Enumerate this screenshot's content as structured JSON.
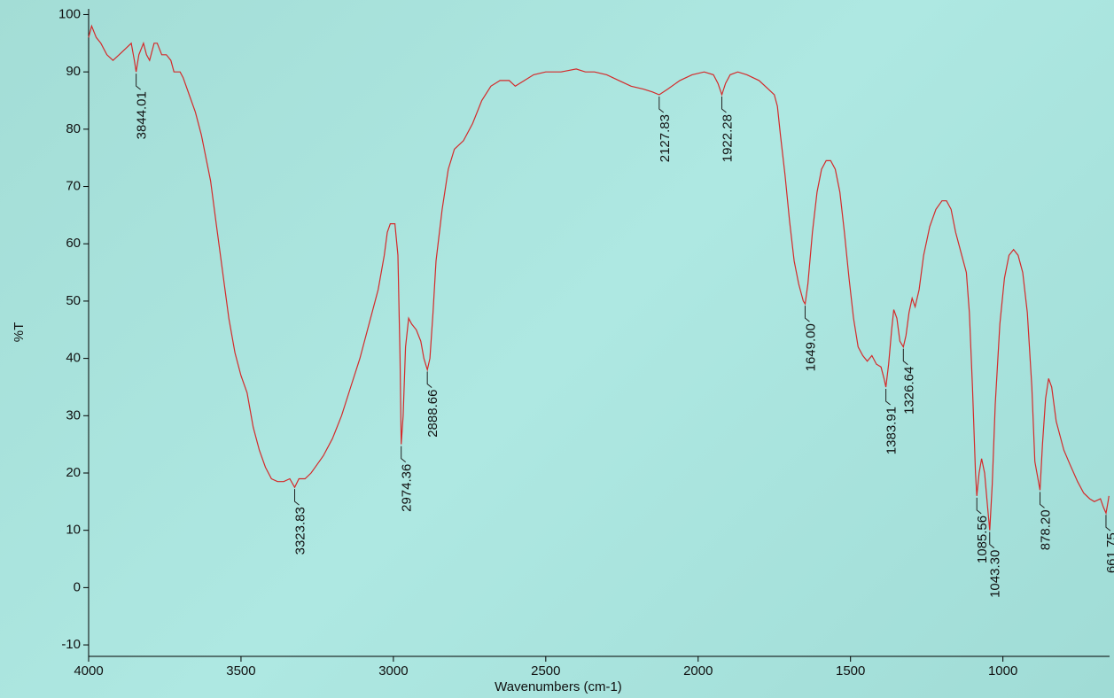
{
  "chart_data": {
    "type": "line",
    "x_label": "Wavenumbers (cm-1)",
    "y_label": "%T",
    "color": "#d42a2a",
    "xlim": [
      4000,
      650
    ],
    "ylim": [
      -12,
      101
    ],
    "xticks": [
      4000,
      3500,
      3000,
      2500,
      2000,
      1500,
      1000
    ],
    "yticks": [
      -10,
      0,
      10,
      20,
      30,
      40,
      50,
      60,
      70,
      80,
      90,
      100
    ],
    "x": [
      4000,
      3990,
      3975,
      3960,
      3940,
      3920,
      3900,
      3880,
      3860,
      3850,
      3844,
      3835,
      3820,
      3810,
      3800,
      3785,
      3775,
      3760,
      3745,
      3730,
      3720,
      3700,
      3690,
      3670,
      3650,
      3630,
      3600,
      3580,
      3560,
      3540,
      3520,
      3500,
      3480,
      3460,
      3440,
      3420,
      3400,
      3380,
      3360,
      3340,
      3323.83,
      3310,
      3290,
      3270,
      3250,
      3230,
      3200,
      3170,
      3140,
      3110,
      3080,
      3050,
      3030,
      3020,
      3010,
      2995,
      2985,
      2978,
      2974.36,
      2968,
      2960,
      2950,
      2940,
      2925,
      2910,
      2900,
      2888.66,
      2880,
      2870,
      2860,
      2840,
      2820,
      2800,
      2770,
      2740,
      2710,
      2680,
      2650,
      2620,
      2600,
      2570,
      2540,
      2500,
      2450,
      2400,
      2370,
      2340,
      2300,
      2260,
      2220,
      2180,
      2150,
      2127.83,
      2100,
      2060,
      2020,
      1980,
      1950,
      1935,
      1922.28,
      1910,
      1895,
      1870,
      1840,
      1800,
      1770,
      1750,
      1740,
      1730,
      1715,
      1700,
      1685,
      1670,
      1655,
      1649,
      1640,
      1625,
      1610,
      1595,
      1580,
      1565,
      1550,
      1535,
      1520,
      1505,
      1490,
      1475,
      1460,
      1445,
      1430,
      1415,
      1400,
      1390,
      1383.91,
      1375,
      1365,
      1358,
      1348,
      1338,
      1326.64,
      1318,
      1308,
      1298,
      1288,
      1275,
      1260,
      1240,
      1220,
      1200,
      1185,
      1170,
      1155,
      1135,
      1120,
      1110,
      1100,
      1090,
      1085.56,
      1078,
      1070,
      1060,
      1050,
      1043.3,
      1035,
      1025,
      1010,
      995,
      980,
      965,
      950,
      935,
      920,
      905,
      895,
      878.2,
      870,
      860,
      850,
      840,
      825,
      800,
      780,
      755,
      735,
      715,
      700,
      680,
      670,
      661.75,
      655,
      652
    ],
    "values": [
      96,
      98,
      96,
      95,
      93,
      92,
      93,
      94,
      95,
      92,
      90,
      93,
      95,
      93,
      92,
      95,
      95,
      93,
      93,
      92,
      90,
      90,
      89,
      86,
      83,
      79,
      71,
      63,
      55,
      47,
      41,
      37,
      34,
      28,
      24,
      21,
      19,
      18.5,
      18.5,
      19,
      17.5,
      19,
      19,
      20,
      21.5,
      23,
      26,
      30,
      35,
      40,
      46,
      52,
      58,
      62,
      63.5,
      63.5,
      58,
      40,
      25,
      30,
      42,
      47,
      46,
      45,
      43,
      40,
      38,
      40,
      48,
      57,
      66,
      73,
      76.5,
      78,
      81,
      85,
      87.5,
      88.5,
      88.5,
      87.5,
      88.5,
      89.5,
      90,
      90,
      90.5,
      90,
      90,
      89.5,
      88.5,
      87.5,
      87,
      86.5,
      86,
      87,
      88.5,
      89.5,
      90,
      89.5,
      88,
      86,
      88,
      89.5,
      90,
      89.5,
      88.5,
      87,
      86,
      84,
      79,
      72,
      64,
      57,
      53,
      50,
      49.5,
      53,
      62,
      69,
      73,
      74.5,
      74.5,
      73,
      69,
      62,
      54,
      47,
      42,
      40.5,
      39.5,
      40.5,
      39,
      38.5,
      36.5,
      35,
      39,
      45,
      48.5,
      47,
      43,
      42,
      44,
      48,
      50.5,
      49,
      52,
      58,
      63,
      66,
      67.5,
      67.5,
      66,
      62,
      58,
      55,
      48,
      35,
      20,
      16,
      20,
      22.5,
      20,
      14,
      10,
      18,
      32,
      46,
      54,
      58,
      59,
      58,
      55,
      48,
      35,
      22,
      17,
      25,
      33,
      36.5,
      35,
      29,
      24,
      21.5,
      18.5,
      16.5,
      15.5,
      15,
      15.5,
      14,
      13,
      15,
      16
    ],
    "peaks": [
      {
        "x": 3844.01,
        "y": 90,
        "label": "3844.01"
      },
      {
        "x": 3323.83,
        "y": 17.5,
        "label": "3323.83"
      },
      {
        "x": 2974.36,
        "y": 25,
        "label": "2974.36"
      },
      {
        "x": 2888.66,
        "y": 38,
        "label": "2888.66"
      },
      {
        "x": 2127.83,
        "y": 86,
        "label": "2127.83"
      },
      {
        "x": 1922.28,
        "y": 86,
        "label": "1922.28"
      },
      {
        "x": 1649.0,
        "y": 49.5,
        "label": "1649.00"
      },
      {
        "x": 1383.91,
        "y": 35,
        "label": "1383.91"
      },
      {
        "x": 1326.64,
        "y": 42,
        "label": "1326.64"
      },
      {
        "x": 1085.56,
        "y": 16,
        "label": "1085.56"
      },
      {
        "x": 1043.3,
        "y": 10,
        "label": "1043.30"
      },
      {
        "x": 878.2,
        "y": 17,
        "label": "878.20"
      },
      {
        "x": 661.75,
        "y": 13,
        "label": "661.75"
      }
    ]
  }
}
